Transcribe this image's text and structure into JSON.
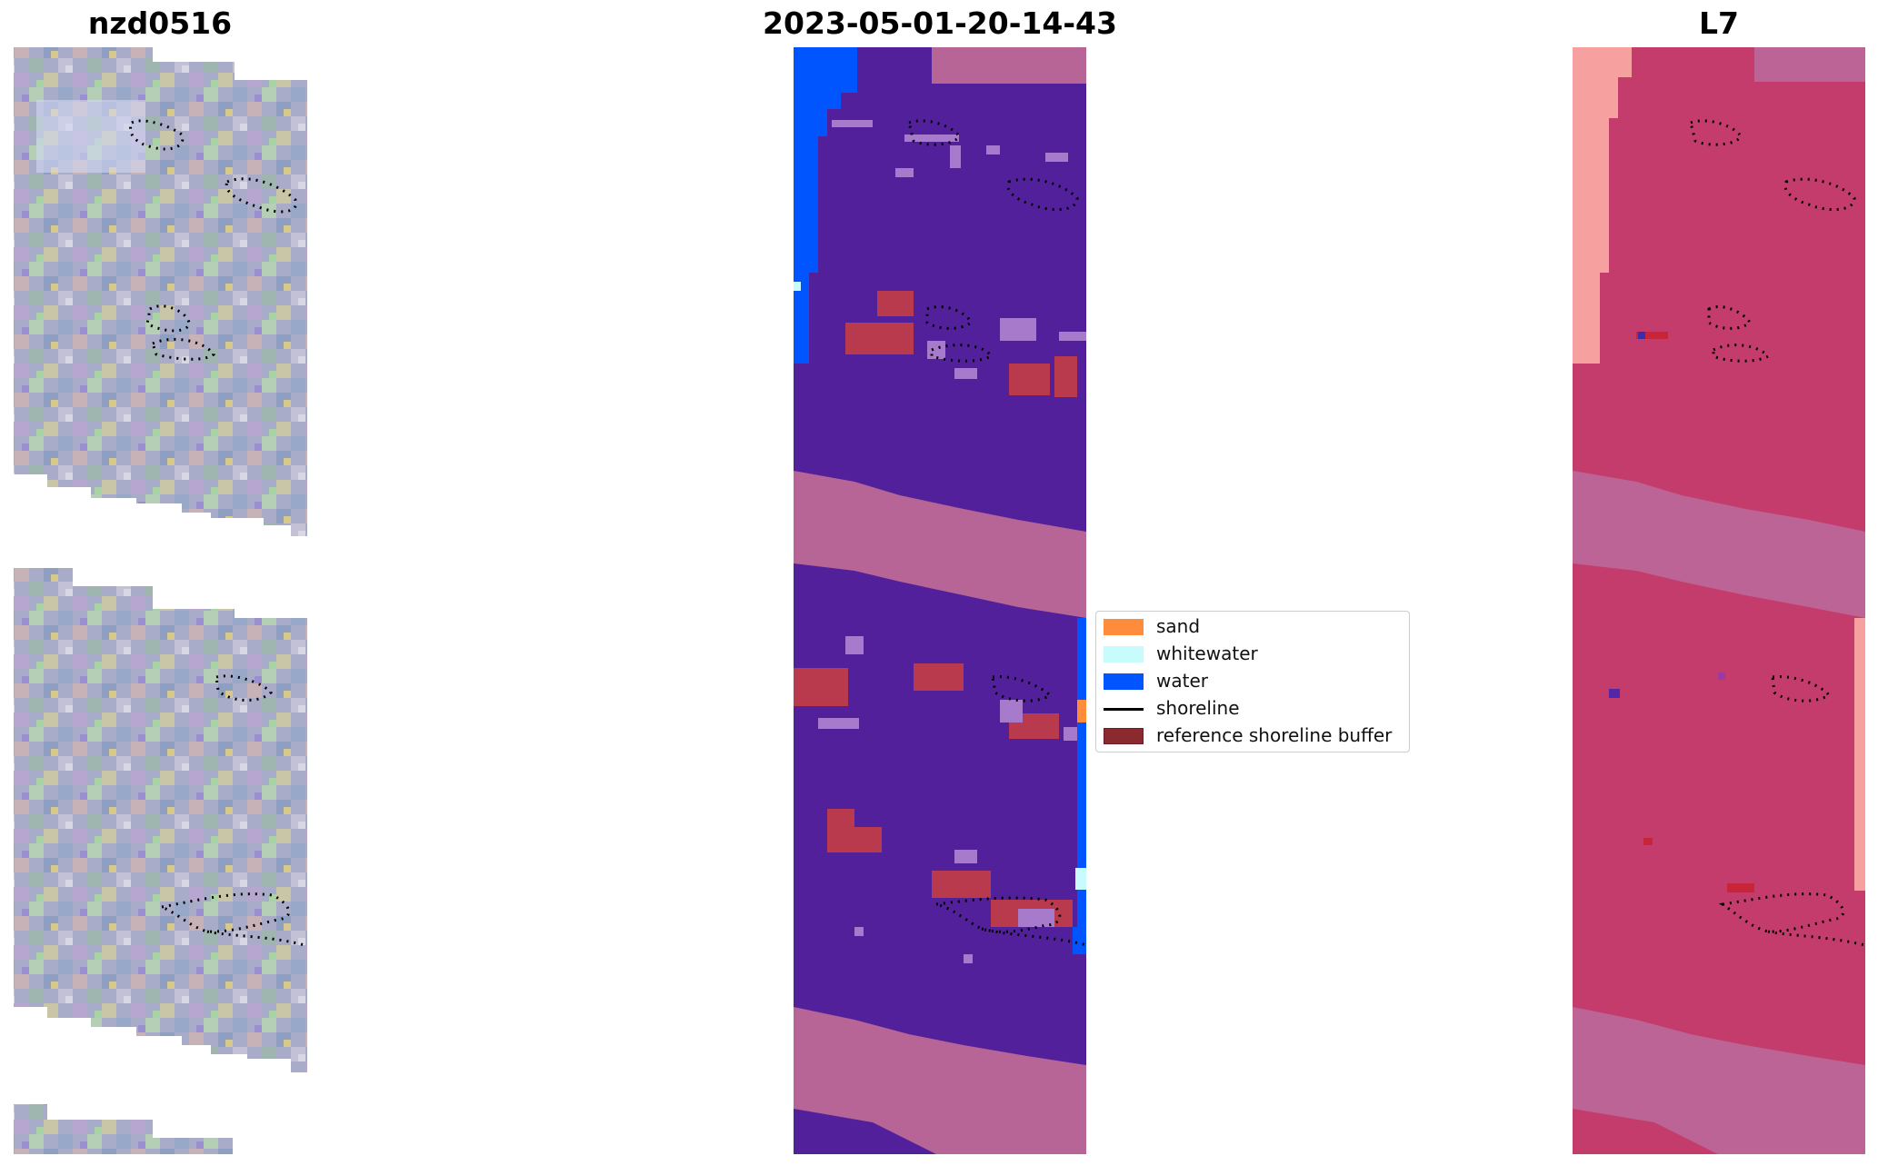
{
  "panels": [
    {
      "title": "nzd0516"
    },
    {
      "title": "2023-05-01-20-14-43"
    },
    {
      "title": "L7"
    }
  ],
  "legend": [
    {
      "label": "sand",
      "color": "#ff8c3a",
      "kind": "patch"
    },
    {
      "label": "whitewater",
      "color": "#c8fbfb",
      "kind": "patch"
    },
    {
      "label": "water",
      "color": "#0055ff",
      "kind": "patch"
    },
    {
      "label": "shoreline",
      "color": "#000000",
      "kind": "line"
    },
    {
      "label": "reference shoreline buffer",
      "color": "#8b2a2e",
      "kind": "patch"
    }
  ],
  "colors": {
    "land_purple": "#52209b",
    "pink_band": "#b76496",
    "water_blue": "#0055ff",
    "buffer_red": "#b83a4c",
    "l7_crimson": "#c33c6c",
    "l7_band": "#bd6496",
    "l7_edge": "#f7a0a0"
  }
}
